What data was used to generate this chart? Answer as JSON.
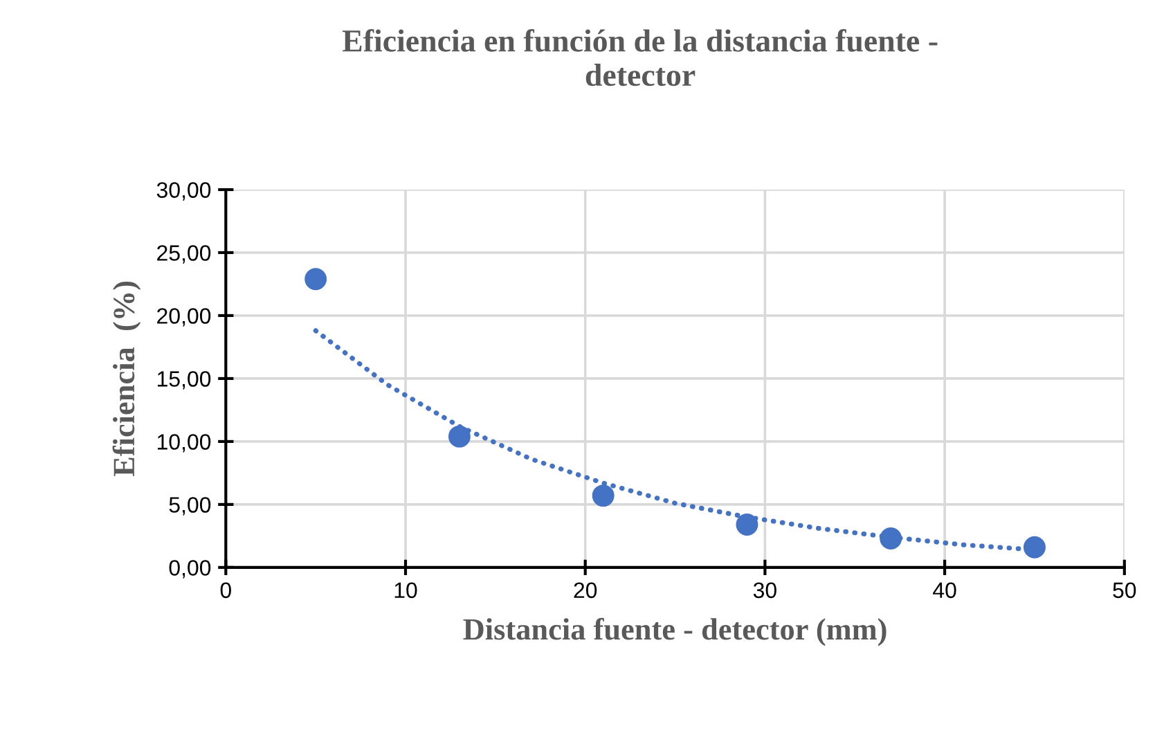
{
  "chart_data": {
    "type": "scatter",
    "title": "Eficiencia en función de la distancia fuente -\ndetector",
    "xlabel": "Distancia fuente - detector (mm)",
    "ylabel": "Eficiencia  (%)",
    "series": [
      {
        "color": "#4472c4",
        "marker": "circle",
        "x": [
          5,
          13,
          21,
          29,
          37,
          45
        ],
        "values": [
          22.9,
          10.4,
          5.7,
          3.4,
          2.3,
          1.6
        ]
      },
      {
        "type": "line",
        "color": "#4472c4",
        "marker": "none",
        "line_style": "dotted",
        "x": [
          5,
          9,
          13,
          17,
          21,
          25,
          29,
          33,
          37,
          41,
          45
        ],
        "values": [
          18.8,
          14.5,
          11.2,
          8.6,
          6.7,
          5.1,
          4.0,
          3.1,
          2.4,
          1.8,
          1.4
        ]
      }
    ],
    "xlim": [
      0,
      50
    ],
    "xticks": [
      0,
      10,
      20,
      30,
      40,
      50
    ],
    "ylim": [
      0,
      30
    ],
    "yticks": [
      {
        "value": 0,
        "label": "0,00"
      },
      {
        "value": 5,
        "label": "5,00"
      },
      {
        "value": 10,
        "label": "10,00"
      },
      {
        "value": 15,
        "label": "15,00"
      },
      {
        "value": 20,
        "label": "20,00"
      },
      {
        "value": 25,
        "label": "25,00"
      },
      {
        "value": 30,
        "label": "30,00"
      }
    ],
    "grid": true,
    "legend": false
  }
}
